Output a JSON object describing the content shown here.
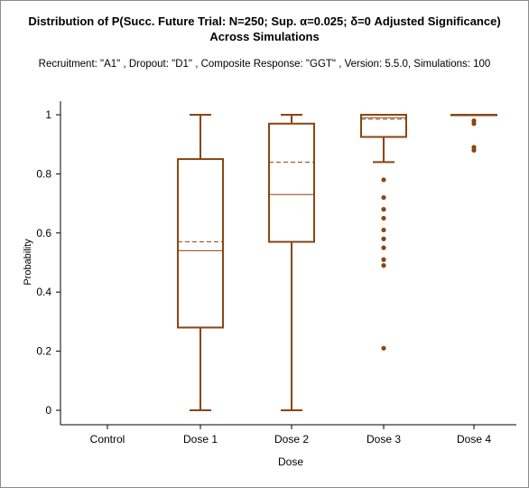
{
  "chart_data": {
    "type": "box",
    "title_line1": "Distribution of P(Succ. Future Trial: N=250; Sup. α=0.025; δ=0 Adjusted Significance)",
    "title_line2": "Across Simulations",
    "subtitle": "Recruitment: \"A1\" , Dropout: \"D1\" , Composite Response: \"GGT\" , Version: 5.5.0, Simulations: 100",
    "xlabel": "Dose",
    "ylabel": "Probability",
    "ylim": [
      0,
      1
    ],
    "yticks": [
      0,
      0.2,
      0.4,
      0.6,
      0.8,
      1
    ],
    "ytick_labels": [
      "0",
      "0.2",
      "0.4",
      "0.6",
      "0.8",
      "1"
    ],
    "categories": [
      "Control",
      "Dose 1",
      "Dose 2",
      "Dose 3",
      "Dose 4"
    ],
    "grid": false,
    "color": "#8B4513",
    "boxes": [
      null,
      {
        "whisker_low": 0.0,
        "q1": 0.28,
        "median": 0.54,
        "mean": 0.57,
        "q3": 0.85,
        "whisker_high": 1.0,
        "outliers": []
      },
      {
        "whisker_low": 0.0,
        "q1": 0.57,
        "median": 0.73,
        "mean": 0.84,
        "q3": 0.97,
        "whisker_high": 1.0,
        "outliers": []
      },
      {
        "whisker_low": 0.84,
        "q1": 0.925,
        "median": 0.99,
        "mean": 0.985,
        "q3": 1.0,
        "whisker_high": 1.0,
        "outliers": [
          0.78,
          0.72,
          0.68,
          0.65,
          0.61,
          0.58,
          0.55,
          0.51,
          0.49,
          0.21
        ]
      },
      {
        "whisker_low": 1.0,
        "q1": 1.0,
        "median": 1.0,
        "mean": 1.0,
        "q3": 1.0,
        "whisker_high": 1.0,
        "outliers": [
          0.98,
          0.97,
          0.89,
          0.88
        ]
      }
    ]
  }
}
